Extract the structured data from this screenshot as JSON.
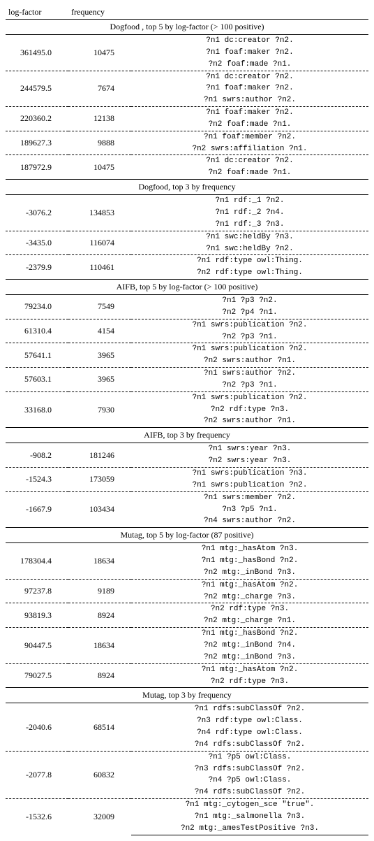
{
  "headers": {
    "log_factor": "log-factor",
    "frequency": "frequency"
  },
  "sections": [
    {
      "title": "Dogfood , top 5 by log-factor (> 100 positive)",
      "rows": [
        {
          "lf": "361495.0",
          "freq": "10475",
          "patterns": [
            "?n1 dc:creator ?n2.",
            "?n1 foaf:maker ?n2.",
            "?n2 foaf:made ?n1."
          ]
        },
        {
          "lf": "244579.5",
          "freq": "7674",
          "patterns": [
            "?n1 dc:creator ?n2.",
            "?n1 foaf:maker ?n2.",
            "?n1 swrs:author ?n2."
          ]
        },
        {
          "lf": "220360.2",
          "freq": "12138",
          "patterns": [
            "?n1 foaf:maker ?n2.",
            "?n2 foaf:made ?n1."
          ]
        },
        {
          "lf": "189627.3",
          "freq": "9888",
          "patterns": [
            "?n1 foaf:member ?n2.",
            "?n2 swrs:affiliation ?n1."
          ]
        },
        {
          "lf": "187972.9",
          "freq": "10475",
          "patterns": [
            "?n1 dc:creator ?n2.",
            "?n2 foaf:made ?n1."
          ]
        }
      ]
    },
    {
      "title": "Dogfood, top 3 by frequency",
      "rows": [
        {
          "lf": "-3076.2",
          "freq": "134853",
          "patterns": [
            "?n1 rdf:_1 ?n2.",
            "?n1 rdf:_2 ?n4.",
            "?n1 rdf:_3 ?n3."
          ]
        },
        {
          "lf": "-3435.0",
          "freq": "116074",
          "patterns": [
            "?n1 swc:heldBy ?n3.",
            "?n1 swc:heldBy ?n2."
          ]
        },
        {
          "lf": "-2379.9",
          "freq": "110461",
          "patterns": [
            "?n1 rdf:type owl:Thing.",
            "?n2 rdf:type owl:Thing."
          ]
        }
      ]
    },
    {
      "title": "AIFB, top 5 by log-factor (> 100 positive)",
      "rows": [
        {
          "lf": "79234.0",
          "freq": "7549",
          "patterns": [
            "?n1 ?p3 ?n2.",
            "?n2 ?p4 ?n1."
          ]
        },
        {
          "lf": "61310.4",
          "freq": "4154",
          "patterns": [
            "?n1 swrs:publication ?n2.",
            "?n2 ?p3 ?n1."
          ]
        },
        {
          "lf": "57641.1",
          "freq": "3965",
          "patterns": [
            "?n1 swrs:publication ?n2.",
            "?n2 swrs:author ?n1."
          ]
        },
        {
          "lf": "57603.1",
          "freq": "3965",
          "patterns": [
            "?n1 swrs:author ?n2.",
            "?n2 ?p3 ?n1."
          ]
        },
        {
          "lf": "33168.0",
          "freq": "7930",
          "patterns": [
            "?n1 swrs:publication ?n2.",
            "?n2 rdf:type ?n3.",
            "?n2 swrs:author ?n1."
          ]
        }
      ]
    },
    {
      "title": "AIFB, top 3 by frequency",
      "rows": [
        {
          "lf": "-908.2",
          "freq": "181246",
          "patterns": [
            "?n1 swrs:year ?n3.",
            "?n2 swrs:year ?n3."
          ]
        },
        {
          "lf": "-1524.3",
          "freq": "173059",
          "patterns": [
            "?n1 swrs:publication ?n3.",
            "?n1 swrs:publication ?n2."
          ]
        },
        {
          "lf": "-1667.9",
          "freq": "103434",
          "patterns": [
            "?n1 swrs:member ?n2.",
            "?n3 ?p5 ?n1.",
            "?n4 swrs:author ?n2."
          ]
        }
      ]
    },
    {
      "title": "Mutag, top 5 by log-factor (87 positive)",
      "rows": [
        {
          "lf": "178304.4",
          "freq": "18634",
          "patterns": [
            "?n1 mtg:_hasAtom ?n3.",
            "?n1 mtg:_hasBond ?n2.",
            "?n2 mtg:_inBond ?n3."
          ]
        },
        {
          "lf": "97237.8",
          "freq": "9189",
          "patterns": [
            "?n1 mtg:_hasAtom ?n2.",
            "?n2 mtg:_charge ?n3."
          ]
        },
        {
          "lf": "93819.3",
          "freq": "8924",
          "patterns": [
            "?n2 rdf:type ?n3.",
            "?n2 mtg:_charge ?n1."
          ]
        },
        {
          "lf": "90447.5",
          "freq": "18634",
          "patterns": [
            "?n1 mtg:_hasBond ?n2.",
            "?n2 mtg:_inBond ?n4.",
            "?n2 mtg:_inBond ?n3."
          ]
        },
        {
          "lf": "79027.5",
          "freq": "8924",
          "patterns": [
            "?n1 mtg:_hasAtom ?n2.",
            "?n2 rdf:type ?n3."
          ]
        }
      ]
    },
    {
      "title": "Mutag, top 3 by frequency",
      "rows": [
        {
          "lf": "-2040.6",
          "freq": "68514",
          "patterns": [
            "?n1 rdfs:subClassOf ?n2.",
            "?n3 rdf:type owl:Class.",
            "?n4 rdf:type owl:Class.",
            "?n4 rdfs:subClassOf ?n2."
          ]
        },
        {
          "lf": "-2077.8",
          "freq": "60832",
          "patterns": [
            "?n1 ?p5 owl:Class.",
            "?n3 rdfs:subClassOf ?n2.",
            "?n4 ?p5 owl:Class.",
            "?n4 rdfs:subClassOf ?n2."
          ]
        },
        {
          "lf": "-1532.6",
          "freq": "32009",
          "patterns": [
            "?n1 mtg:_cytogen_sce \"true\".",
            "?n1 mtg:_salmonella ?n3.",
            "?n2 mtg:_amesTestPositive ?n3."
          ]
        }
      ]
    }
  ]
}
